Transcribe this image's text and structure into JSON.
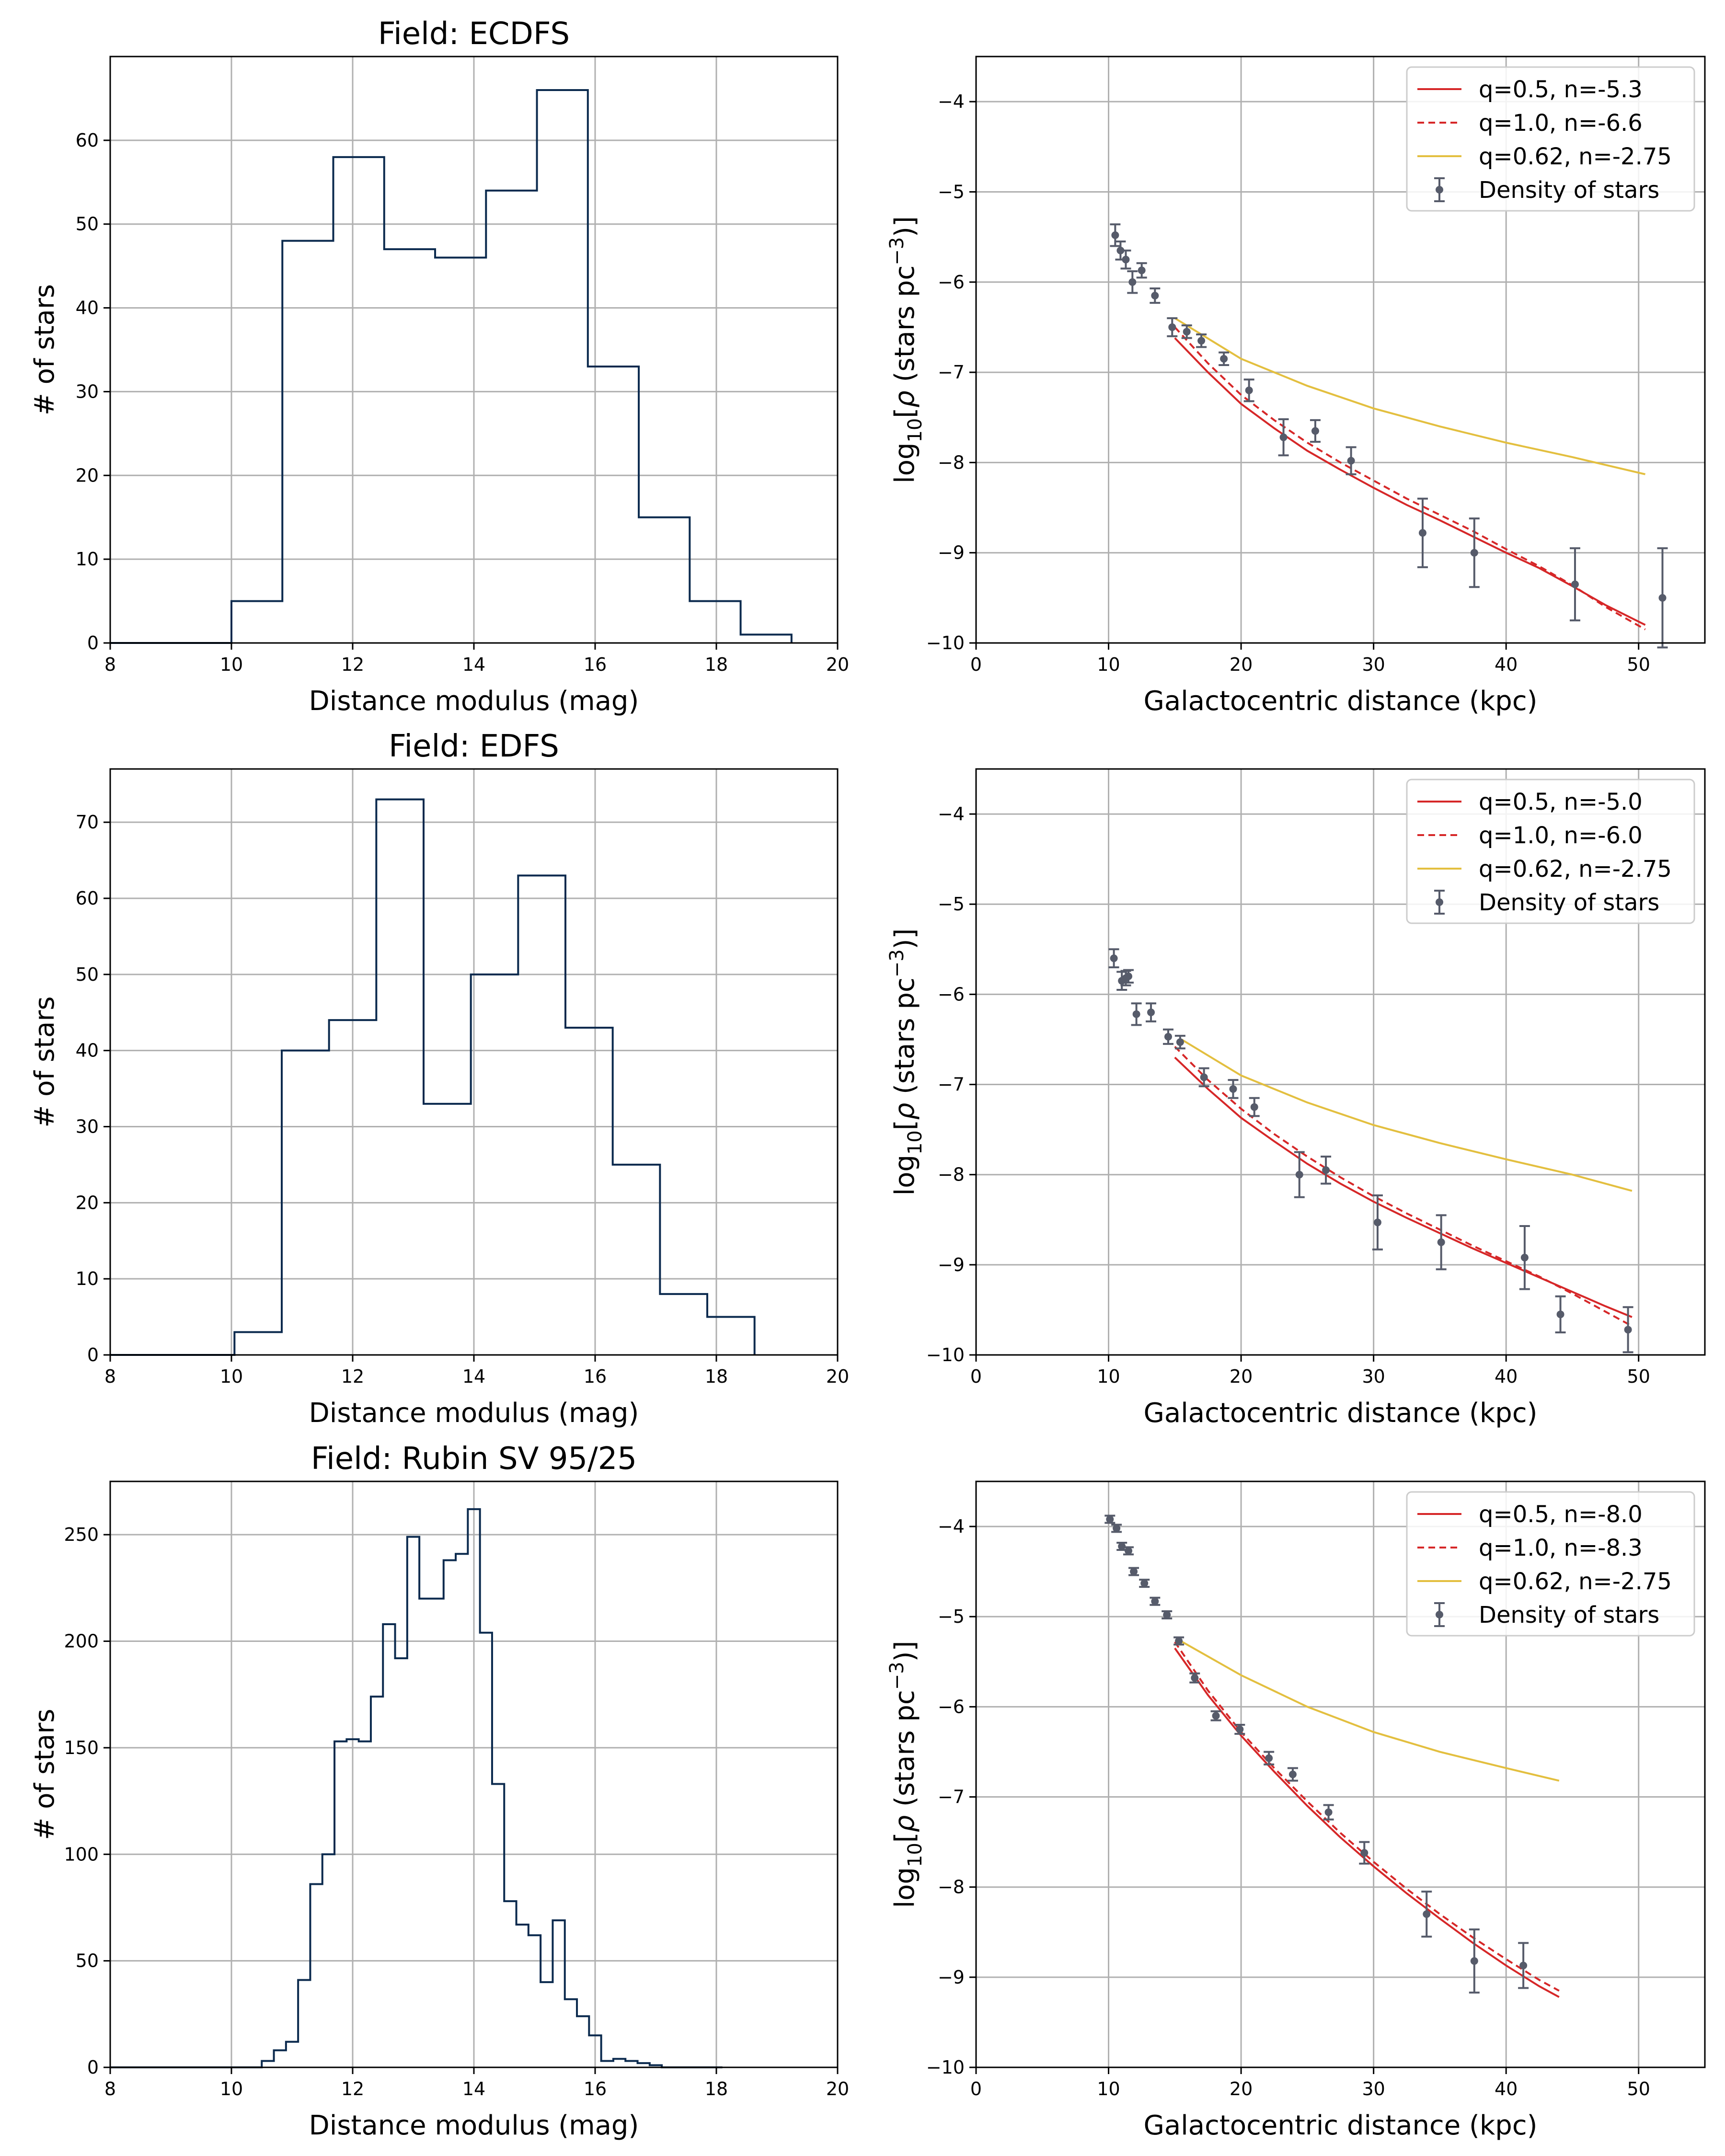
{
  "figure_colors": {
    "histogram": "#0b2a4e",
    "model_red": "#d62728",
    "model_gold": "#e3bf3f",
    "points": "#565b6a",
    "grid": "#b0b0b0"
  },
  "chart_data": [
    {
      "type": "histogram",
      "title": "Field: ECDFS",
      "xlabel": "Distance modulus (mag)",
      "ylabel": "# of stars",
      "xlim": [
        8,
        20
      ],
      "ylim": [
        0,
        70
      ],
      "xticks": [
        "8",
        "10",
        "12",
        "14",
        "16",
        "18",
        "20"
      ],
      "yticks": [
        "0",
        "10",
        "20",
        "30",
        "40",
        "50",
        "60"
      ],
      "bin_edges": [
        8.0,
        10.0,
        10.84,
        11.68,
        12.52,
        13.36,
        14.2,
        15.04,
        15.88,
        16.72,
        17.56,
        18.4,
        19.24
      ],
      "counts": [
        0,
        5,
        48,
        58,
        47,
        46,
        54,
        66,
        33,
        15,
        5,
        1
      ]
    },
    {
      "type": "scatter_errorbar_with_lines",
      "xlabel": "Galactocentric distance (kpc)",
      "ylabel": "log10[ρ (stars pc⁻³)]",
      "xlim": [
        0,
        55
      ],
      "ylim": [
        -10,
        -3.5
      ],
      "xticks": [
        "0",
        "10",
        "20",
        "30",
        "40",
        "50"
      ],
      "yticks": [
        "−10",
        "−9",
        "−8",
        "−7",
        "−6",
        "−5",
        "−4"
      ],
      "legend": [
        "q=0.5, n=-5.3",
        "q=1.0, n=-6.6",
        "q=0.62, n=-2.75",
        "Density of stars"
      ],
      "series": [
        {
          "name": "q=0.5, n=-5.3",
          "style": "solid",
          "color": "#d62728",
          "x": [
            15.0,
            17.5,
            20,
            22.5,
            25,
            27.5,
            30,
            32.5,
            35,
            37.5,
            40,
            42.5,
            45,
            47.5,
            50.5
          ],
          "y": [
            -6.62,
            -7.0,
            -7.35,
            -7.62,
            -7.87,
            -8.08,
            -8.28,
            -8.47,
            -8.64,
            -8.82,
            -9.0,
            -9.17,
            -9.37,
            -9.58,
            -9.8
          ]
        },
        {
          "name": "q=1.0, n=-6.6",
          "style": "dashed",
          "color": "#d62728",
          "x": [
            15.0,
            17.5,
            20,
            22.5,
            25,
            27.5,
            30,
            32.5,
            35,
            37.5,
            40,
            42.5,
            45,
            47.5,
            50.5
          ],
          "y": [
            -6.5,
            -6.9,
            -7.25,
            -7.53,
            -7.78,
            -8.0,
            -8.2,
            -8.4,
            -8.58,
            -8.76,
            -8.96,
            -9.15,
            -9.36,
            -9.6,
            -9.85
          ]
        },
        {
          "name": "q=0.62, n=-2.75",
          "style": "solid",
          "color": "#e3bf3f",
          "x": [
            15.0,
            20,
            25,
            30,
            35,
            40,
            45,
            50.5
          ],
          "y": [
            -6.4,
            -6.85,
            -7.15,
            -7.4,
            -7.6,
            -7.78,
            -7.94,
            -8.13
          ]
        },
        {
          "name": "Density of stars",
          "style": "errorbar",
          "color": "#565b6a",
          "x": [
            10.5,
            10.9,
            11.3,
            11.8,
            12.5,
            13.5,
            14.8,
            15.9,
            17.0,
            18.7,
            20.6,
            23.2,
            25.6,
            28.3,
            33.7,
            37.6,
            45.2,
            51.8
          ],
          "y": [
            -5.48,
            -5.65,
            -5.75,
            -6.0,
            -5.87,
            -6.15,
            -6.5,
            -6.55,
            -6.65,
            -6.85,
            -7.2,
            -7.72,
            -7.65,
            -7.98,
            -8.78,
            -9.0,
            -9.35,
            -9.5
          ],
          "yerr": [
            0.12,
            0.1,
            0.1,
            0.12,
            0.08,
            0.08,
            0.1,
            0.07,
            0.07,
            0.07,
            0.12,
            0.2,
            0.12,
            0.15,
            0.38,
            0.38,
            0.4,
            0.55
          ]
        }
      ]
    },
    {
      "type": "histogram",
      "title": "Field: EDFS",
      "xlabel": "Distance modulus (mag)",
      "ylabel": "# of stars",
      "xlim": [
        8,
        20
      ],
      "ylim": [
        0,
        77
      ],
      "xticks": [
        "8",
        "10",
        "12",
        "14",
        "16",
        "18",
        "20"
      ],
      "yticks": [
        "0",
        "10",
        "20",
        "30",
        "40",
        "50",
        "60",
        "70"
      ],
      "bin_edges": [
        8.0,
        10.05,
        10.83,
        11.61,
        12.39,
        13.17,
        13.95,
        14.73,
        15.51,
        16.29,
        17.07,
        17.85,
        18.63
      ],
      "counts": [
        0,
        3,
        40,
        44,
        73,
        33,
        50,
        63,
        43,
        25,
        8,
        5
      ]
    },
    {
      "type": "scatter_errorbar_with_lines",
      "xlabel": "Galactocentric distance (kpc)",
      "ylabel": "log10[ρ (stars pc⁻³)]",
      "xlim": [
        0,
        55
      ],
      "ylim": [
        -10,
        -3.5
      ],
      "xticks": [
        "0",
        "10",
        "20",
        "30",
        "40",
        "50"
      ],
      "yticks": [
        "−10",
        "−9",
        "−8",
        "−7",
        "−6",
        "−5",
        "−4"
      ],
      "legend": [
        "q=0.5, n=-5.0",
        "q=1.0, n=-6.0",
        "q=0.62, n=-2.75",
        "Density of stars"
      ],
      "series": [
        {
          "name": "q=0.5, n=-5.0",
          "style": "solid",
          "color": "#d62728",
          "x": [
            15.0,
            17.5,
            20,
            22.5,
            25,
            27.5,
            30,
            32.5,
            35,
            37.5,
            40,
            42.5,
            45,
            47.5,
            49.5
          ],
          "y": [
            -6.7,
            -7.05,
            -7.37,
            -7.63,
            -7.88,
            -8.1,
            -8.3,
            -8.48,
            -8.65,
            -8.82,
            -8.98,
            -9.14,
            -9.3,
            -9.46,
            -9.58
          ]
        },
        {
          "name": "q=1.0, n=-6.0",
          "style": "dashed",
          "color": "#d62728",
          "x": [
            15.0,
            17.5,
            20,
            22.5,
            25,
            27.5,
            30,
            32.5,
            35,
            37.5,
            40,
            42.5,
            45,
            47.5,
            49.5
          ],
          "y": [
            -6.58,
            -6.95,
            -7.27,
            -7.55,
            -7.8,
            -8.03,
            -8.24,
            -8.43,
            -8.61,
            -8.79,
            -8.96,
            -9.13,
            -9.32,
            -9.52,
            -9.68
          ]
        },
        {
          "name": "q=0.62, n=-2.75",
          "style": "solid",
          "color": "#e3bf3f",
          "x": [
            15.5,
            20,
            25,
            30,
            35,
            40,
            45,
            49.5
          ],
          "y": [
            -6.5,
            -6.9,
            -7.2,
            -7.45,
            -7.65,
            -7.83,
            -8.0,
            -8.18
          ]
        },
        {
          "name": "Density of stars",
          "style": "errorbar",
          "color": "#565b6a",
          "x": [
            10.4,
            11.0,
            11.3,
            11.5,
            12.1,
            13.2,
            14.5,
            15.4,
            17.2,
            19.4,
            21.0,
            24.4,
            26.4,
            30.3,
            35.1,
            41.4,
            44.1,
            49.2
          ],
          "y": [
            -5.6,
            -5.85,
            -5.82,
            -5.8,
            -6.22,
            -6.2,
            -6.47,
            -6.53,
            -6.92,
            -7.05,
            -7.25,
            -8.0,
            -7.95,
            -8.53,
            -8.75,
            -8.92,
            -9.55,
            -9.72
          ],
          "yerr": [
            0.1,
            0.1,
            0.08,
            0.07,
            0.12,
            0.1,
            0.08,
            0.07,
            0.1,
            0.1,
            0.1,
            0.25,
            0.15,
            0.3,
            0.3,
            0.35,
            0.2,
            0.25
          ]
        }
      ]
    },
    {
      "type": "histogram",
      "title": "Field: Rubin SV 95/25",
      "xlabel": "Distance modulus (mag)",
      "ylabel": "# of stars",
      "xlim": [
        8,
        20
      ],
      "ylim": [
        0,
        275
      ],
      "xticks": [
        "8",
        "10",
        "12",
        "14",
        "16",
        "18",
        "20"
      ],
      "yticks": [
        "0",
        "50",
        "100",
        "150",
        "200",
        "250"
      ],
      "bin_edges": [
        8.0,
        10.5,
        10.7,
        10.9,
        11.1,
        11.3,
        11.5,
        11.7,
        11.9,
        12.1,
        12.3,
        12.5,
        12.7,
        12.9,
        13.1,
        13.3,
        13.5,
        13.7,
        13.9,
        14.1,
        14.3,
        14.5,
        14.7,
        14.9,
        15.1,
        15.3,
        15.5,
        15.7,
        15.9,
        16.1,
        16.3,
        16.5,
        16.7,
        16.9,
        17.1,
        17.3,
        17.5,
        17.7,
        17.9,
        18.1
      ],
      "counts": [
        0,
        3,
        8,
        12,
        41,
        86,
        100,
        153,
        154,
        153,
        174,
        208,
        192,
        249,
        220,
        220,
        238,
        241,
        262,
        204,
        133,
        78,
        67,
        62,
        40,
        69,
        32,
        24,
        15,
        3,
        4,
        3,
        2,
        1,
        0,
        0,
        0,
        0,
        0
      ]
    },
    {
      "type": "scatter_errorbar_with_lines",
      "xlabel": "Galactocentric distance (kpc)",
      "ylabel": "log10[ρ (stars pc⁻³)]",
      "xlim": [
        0,
        55
      ],
      "ylim": [
        -10,
        -3.5
      ],
      "xticks": [
        "0",
        "10",
        "20",
        "30",
        "40",
        "50"
      ],
      "yticks": [
        "−10",
        "−9",
        "−8",
        "−7",
        "−6",
        "−5",
        "−4"
      ],
      "legend": [
        "q=0.5, n=-8.0",
        "q=1.0, n=-8.3",
        "q=0.62, n=-2.75",
        "Density of stars"
      ],
      "series": [
        {
          "name": "q=0.5, n=-8.0",
          "style": "solid",
          "color": "#d62728",
          "x": [
            15.0,
            17.5,
            20,
            22.5,
            25,
            27.5,
            30,
            32.5,
            35,
            37.5,
            40,
            42.5,
            44.0
          ],
          "y": [
            -5.35,
            -5.87,
            -6.32,
            -6.72,
            -7.1,
            -7.45,
            -7.77,
            -8.07,
            -8.35,
            -8.62,
            -8.87,
            -9.1,
            -9.22
          ]
        },
        {
          "name": "q=1.0, n=-8.3",
          "style": "dashed",
          "color": "#d62728",
          "x": [
            15.0,
            17.5,
            20,
            22.5,
            25,
            27.5,
            30,
            32.5,
            35,
            37.5,
            40,
            42.5,
            44.0
          ],
          "y": [
            -5.28,
            -5.82,
            -6.28,
            -6.68,
            -7.05,
            -7.4,
            -7.72,
            -8.02,
            -8.3,
            -8.56,
            -8.8,
            -9.03,
            -9.15
          ]
        },
        {
          "name": "q=0.62, n=-2.75",
          "style": "solid",
          "color": "#e3bf3f",
          "x": [
            15.2,
            20,
            25,
            30,
            35,
            40,
            44.0
          ],
          "y": [
            -5.25,
            -5.65,
            -6.0,
            -6.28,
            -6.5,
            -6.68,
            -6.82
          ]
        },
        {
          "name": "Density of stars",
          "style": "errorbar",
          "color": "#565b6a",
          "x": [
            10.1,
            10.6,
            11.0,
            11.5,
            11.9,
            12.7,
            13.5,
            14.4,
            15.3,
            16.5,
            18.1,
            19.9,
            22.1,
            23.9,
            26.6,
            29.3,
            34.0,
            37.6,
            41.3
          ],
          "y": [
            -3.92,
            -4.02,
            -4.22,
            -4.27,
            -4.5,
            -4.63,
            -4.83,
            -4.98,
            -5.27,
            -5.68,
            -6.1,
            -6.25,
            -6.57,
            -6.75,
            -7.17,
            -7.62,
            -8.3,
            -8.82,
            -8.87
          ],
          "yerr": [
            0.04,
            0.04,
            0.04,
            0.04,
            0.04,
            0.04,
            0.04,
            0.04,
            0.04,
            0.05,
            0.05,
            0.05,
            0.07,
            0.07,
            0.08,
            0.12,
            0.25,
            0.35,
            0.25
          ]
        }
      ]
    }
  ]
}
